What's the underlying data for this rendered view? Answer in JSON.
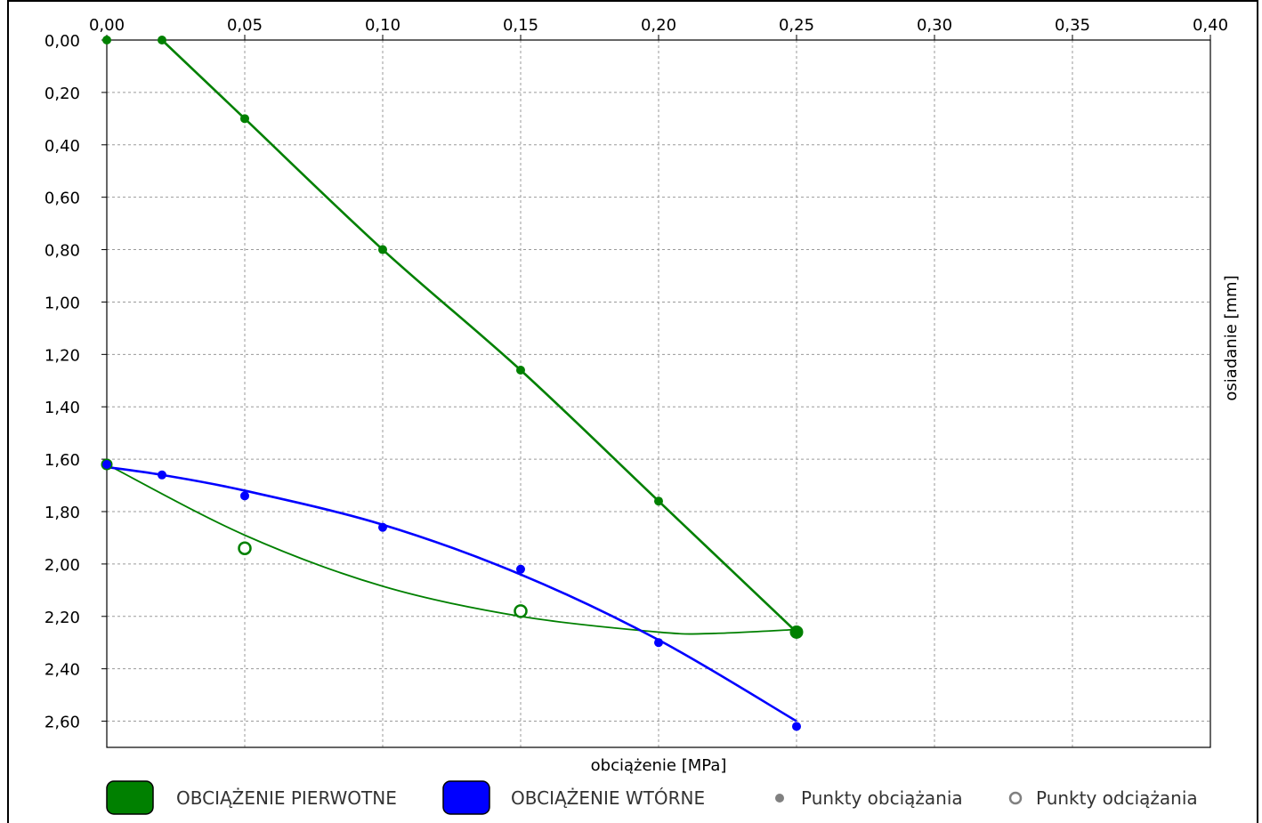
{
  "chart_data": {
    "type": "scatter",
    "xlabel": "obciążenie [MPa]",
    "ylabel": "osiadanie [mm]",
    "xlim": [
      0,
      0.4
    ],
    "ylim": [
      0,
      2.7
    ],
    "y_inverted": true,
    "x_axis_position": "top",
    "grid": true,
    "x_ticks": [
      "0,00",
      "0,05",
      "0,10",
      "0,15",
      "0,20",
      "0,25",
      "0,30",
      "0,35",
      "0,40"
    ],
    "y_ticks": [
      "0,00",
      "0,20",
      "0,40",
      "0,60",
      "0,80",
      "1,00",
      "1,20",
      "1,40",
      "1,60",
      "1,80",
      "2,00",
      "2,20",
      "2,40",
      "2,60"
    ],
    "series": [
      {
        "name": "OBCIĄŻENIE PIERWOTNE",
        "color": "#008000",
        "loading_points": [
          [
            0.0,
            0.0
          ],
          [
            0.02,
            0.0
          ],
          [
            0.05,
            0.3
          ],
          [
            0.1,
            0.8
          ],
          [
            0.15,
            1.26
          ],
          [
            0.2,
            1.76
          ],
          [
            0.25,
            2.26
          ]
        ],
        "curve": [
          [
            0.02,
            0.0
          ],
          [
            0.05,
            0.3
          ],
          [
            0.1,
            0.8
          ],
          [
            0.15,
            1.26
          ],
          [
            0.2,
            1.76
          ],
          [
            0.25,
            2.26
          ]
        ],
        "unloading_points": [
          [
            0.25,
            2.26
          ],
          [
            0.15,
            2.18
          ],
          [
            0.05,
            1.94
          ],
          [
            0.0,
            1.62
          ]
        ],
        "unloading_curve": [
          [
            0.25,
            2.25
          ],
          [
            0.22,
            2.265
          ],
          [
            0.2,
            2.26
          ],
          [
            0.15,
            2.2
          ],
          [
            0.1,
            2.085
          ],
          [
            0.05,
            1.89
          ],
          [
            0.0,
            1.62
          ]
        ]
      },
      {
        "name": "OBCIĄŻENIE WTÓRNE",
        "color": "#0000FF",
        "loading_points": [
          [
            0.0,
            1.62
          ],
          [
            0.02,
            1.66
          ],
          [
            0.05,
            1.74
          ],
          [
            0.1,
            1.86
          ],
          [
            0.15,
            2.02
          ],
          [
            0.2,
            2.3
          ],
          [
            0.25,
            2.62
          ]
        ],
        "curve": [
          [
            0.0,
            1.63
          ],
          [
            0.02,
            1.66
          ],
          [
            0.05,
            1.72
          ],
          [
            0.1,
            1.85
          ],
          [
            0.15,
            2.04
          ],
          [
            0.2,
            2.29
          ],
          [
            0.25,
            2.6
          ]
        ]
      }
    ],
    "legend": {
      "placement": "bottom",
      "items": [
        "OBCIĄŻENIE PIERWOTNE",
        "OBCIĄŻENIE WTÓRNE",
        "Punkty obciążania",
        "Punkty odciążania"
      ]
    }
  },
  "legend": {
    "primary": "OBCIĄŻENIE PIERWOTNE",
    "secondary": "OBCIĄŻENIE WTÓRNE",
    "loading_points": "Punkty obciążania",
    "unloading_points": "Punkty odciążania"
  },
  "axes": {
    "xlabel": "obciążenie [MPa]",
    "ylabel": "osiadanie [mm]"
  }
}
